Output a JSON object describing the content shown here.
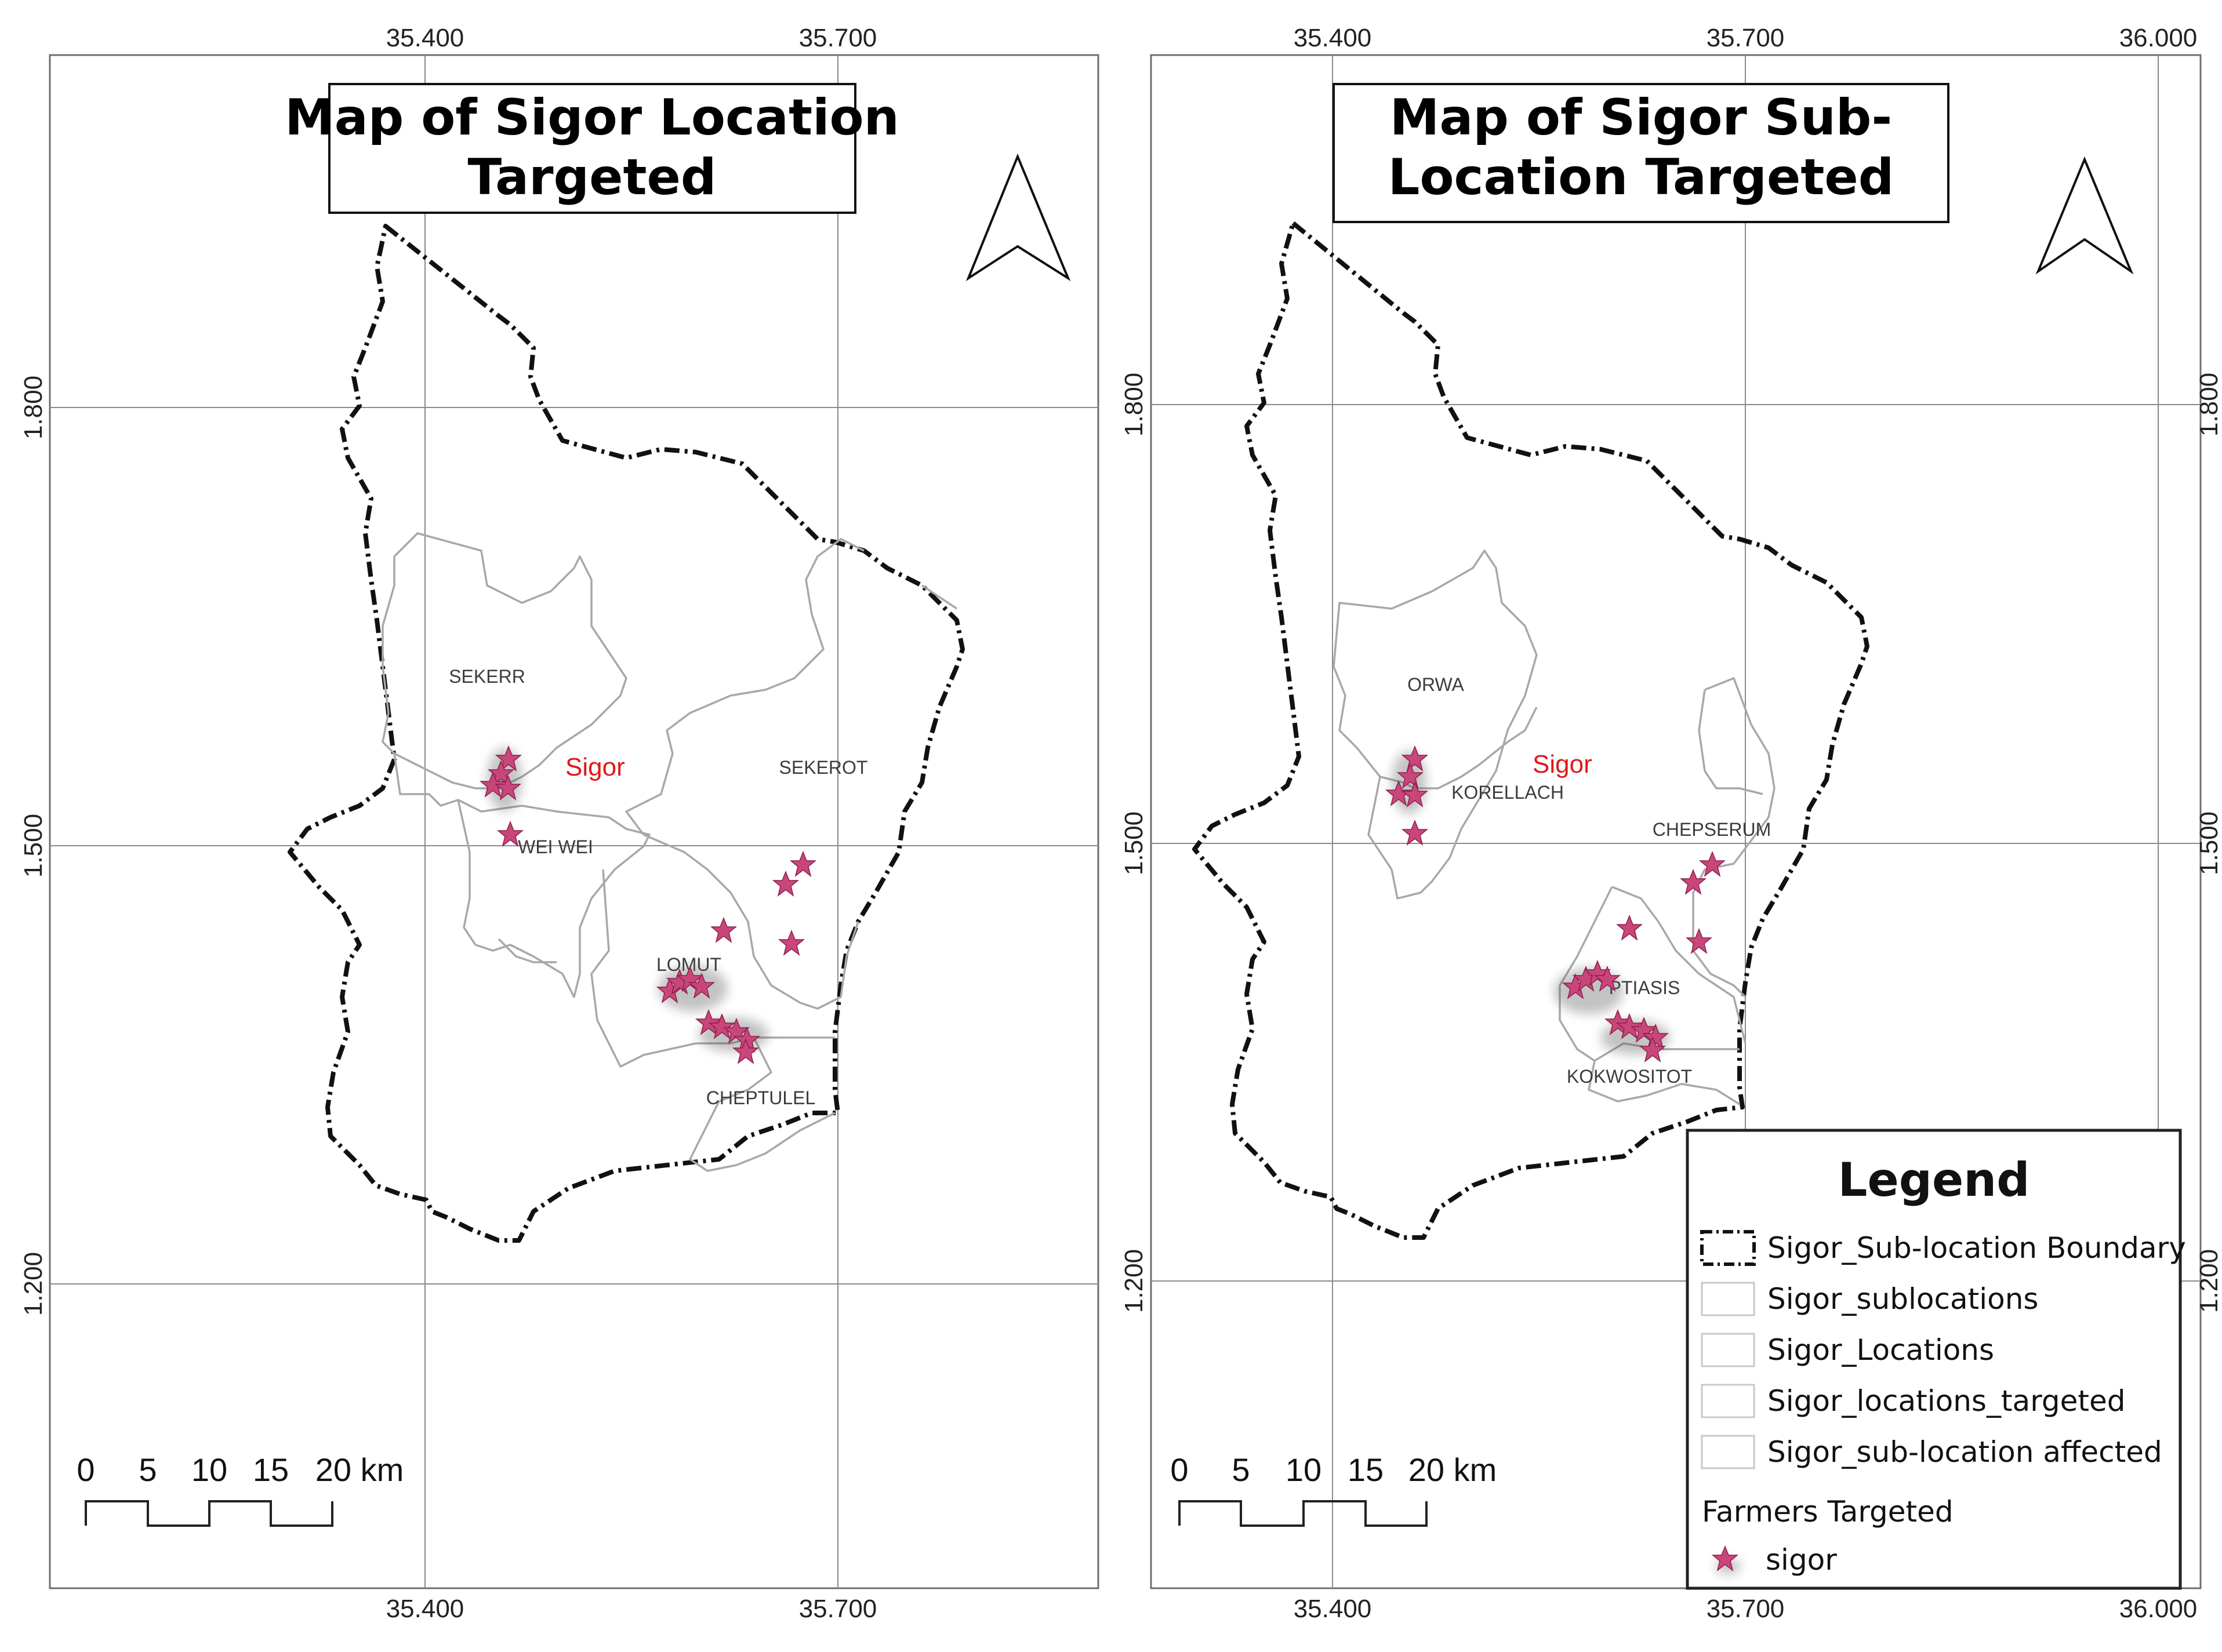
{
  "maps": [
    {
      "title_lines": [
        "Map of Sigor Location",
        "Targeted"
      ],
      "top_ticks": [
        "35.400",
        "35.700"
      ],
      "bottom_ticks": [
        "35.400",
        "35.700"
      ],
      "left_ticks": [
        "1.800",
        "1.500",
        "1.200"
      ],
      "right_ticks": [],
      "region_labels": [
        "SEKERR",
        "SEKEROT",
        "WEI WEI",
        "LOMUT",
        "CHEPTULEL"
      ],
      "place_label": "Sigor",
      "scale_labels": [
        "0",
        "5",
        "10",
        "15",
        "20 km"
      ]
    },
    {
      "title_lines": [
        "Map of Sigor Sub-",
        "Location Targeted"
      ],
      "top_ticks": [
        "35.400",
        "35.700",
        "36.000"
      ],
      "bottom_ticks": [
        "35.400",
        "35.700",
        "36.000"
      ],
      "left_ticks": [
        "1.800",
        "1.500",
        "1.200"
      ],
      "right_ticks": [
        "1.800",
        "1.500",
        "1.200"
      ],
      "region_labels": [
        "ORWA",
        "KORELLACH",
        "CHEPSERUM",
        "PTIASIS",
        "KOKWOSITOT"
      ],
      "place_label": "Sigor",
      "scale_labels": [
        "0",
        "5",
        "10",
        "15",
        "20 km"
      ]
    }
  ],
  "legend": {
    "title": "Legend",
    "items": [
      "Sigor_Sub-location Boundary",
      "Sigor_sublocations",
      "Sigor_Locations",
      "Sigor_locations_targeted",
      "Sigor_sub-location affected"
    ],
    "group_title": "Farmers Targeted",
    "marker_label": "sigor"
  },
  "colors": {
    "marker": "#c8467a",
    "place_label": "#e01818",
    "boundary": "#111111",
    "inner_lines": "#a8a8a8"
  },
  "icons": {
    "north_arrow": "north-arrow-icon",
    "marker": "star-icon"
  }
}
